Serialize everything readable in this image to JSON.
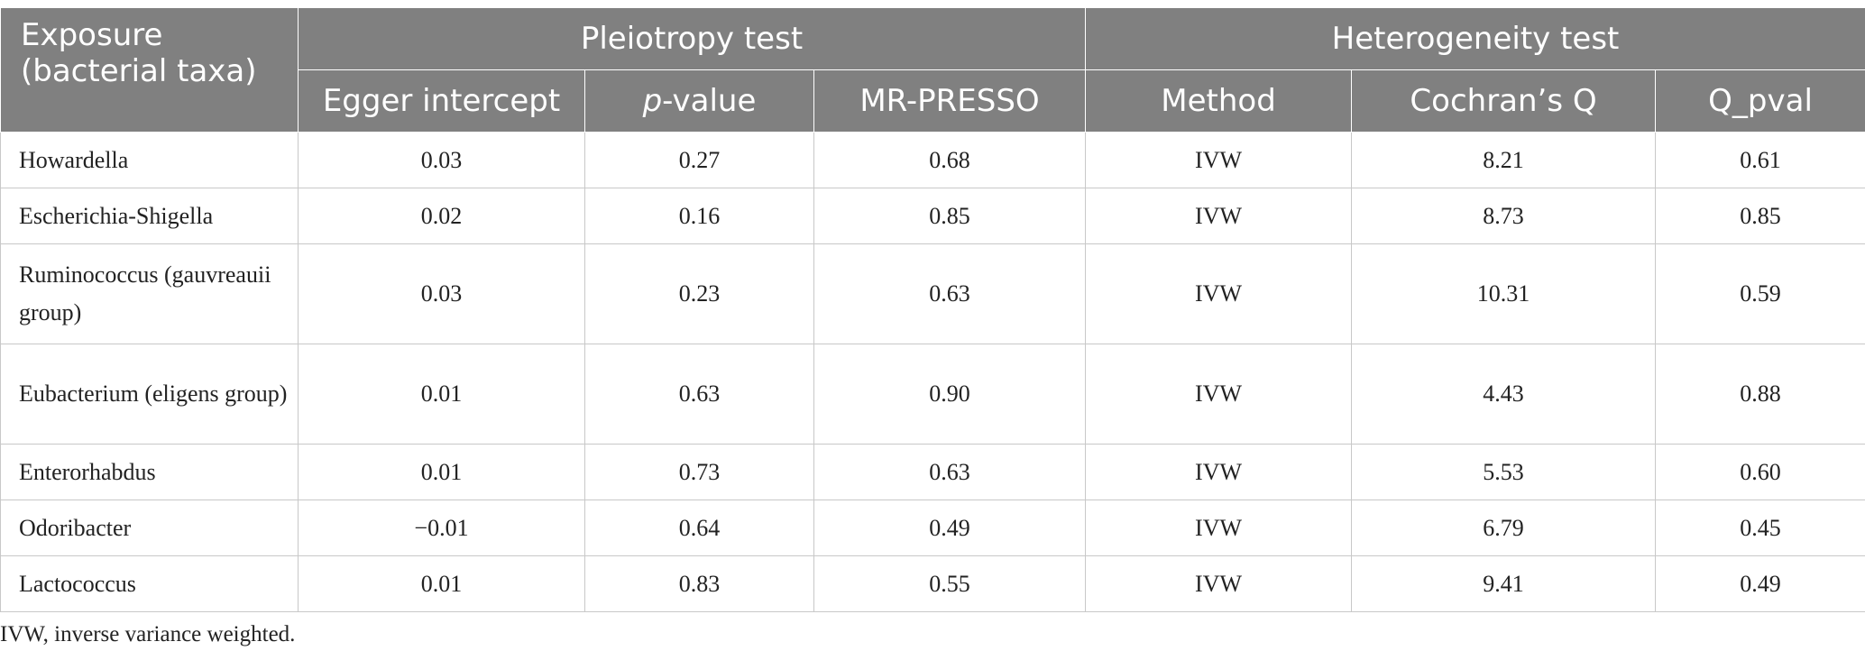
{
  "header": {
    "exposure": "Exposure (bacterial taxa)",
    "group_pleiotropy": "Pleiotropy test",
    "group_heterogeneity": "Heterogeneity test",
    "col_egger": "Egger intercept",
    "col_p_italic": "p",
    "col_p_rest": "-value",
    "col_mrpresso": "MR-PRESSO",
    "col_method": "Method",
    "col_cochran": "Cochran’s Q",
    "col_qpval": "Q_pval"
  },
  "rows": [
    {
      "taxon": "Howardella",
      "egger": "0.03",
      "p": "0.27",
      "mrpresso": "0.68",
      "method": "IVW",
      "q": "8.21",
      "qpval": "0.61"
    },
    {
      "taxon": "Escherichia-Shigella",
      "egger": "0.02",
      "p": "0.16",
      "mrpresso": "0.85",
      "method": "IVW",
      "q": "8.73",
      "qpval": "0.85"
    },
    {
      "taxon": "Ruminococcus (gauvreauii group)",
      "egger": "0.03",
      "p": "0.23",
      "mrpresso": "0.63",
      "method": "IVW",
      "q": "10.31",
      "qpval": "0.59"
    },
    {
      "taxon": "Eubacterium (eligens group)",
      "egger": "0.01",
      "p": "0.63",
      "mrpresso": "0.90",
      "method": "IVW",
      "q": "4.43",
      "qpval": "0.88"
    },
    {
      "taxon": "Enterorhabdus",
      "egger": "0.01",
      "p": "0.73",
      "mrpresso": "0.63",
      "method": "IVW",
      "q": "5.53",
      "qpval": "0.60"
    },
    {
      "taxon": "Odoribacter",
      "egger": "−0.01",
      "p": "0.64",
      "mrpresso": "0.49",
      "method": "IVW",
      "q": "6.79",
      "qpval": "0.45"
    },
    {
      "taxon": "Lactococcus",
      "egger": "0.01",
      "p": "0.83",
      "mrpresso": "0.55",
      "method": "IVW",
      "q": "9.41",
      "qpval": "0.49"
    }
  ],
  "footnote": "IVW, inverse variance weighted."
}
